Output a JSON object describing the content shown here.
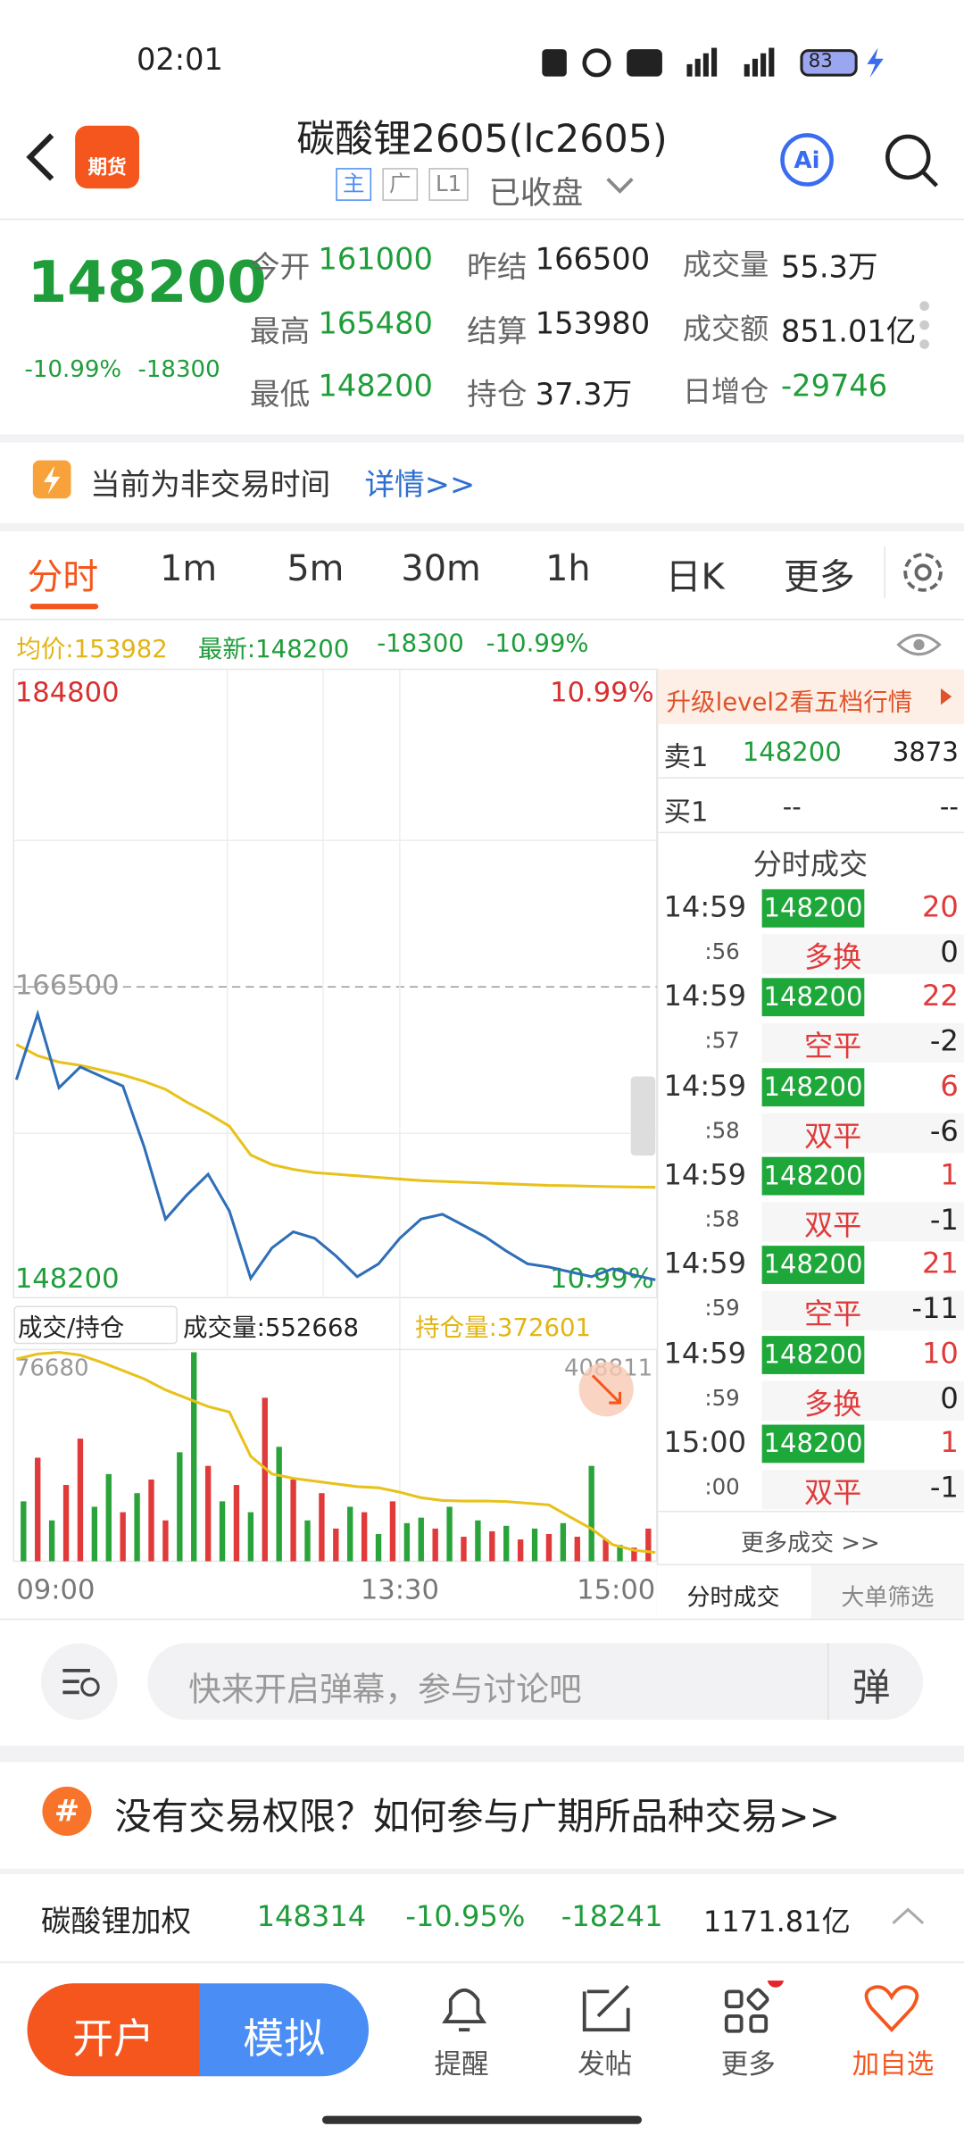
{
  "status_bar": {
    "time": "02:01",
    "battery": "83"
  },
  "header": {
    "logo": "期货",
    "title": "碳酸锂2605(lc2605)",
    "tags": [
      "主",
      "广",
      "L1"
    ],
    "status": "已收盘"
  },
  "quote": {
    "price": 148200,
    "change_pct": "-10.99%",
    "change": -18300,
    "fields": [
      {
        "label": "今开",
        "value": 161000,
        "color": "#1f9d3a"
      },
      {
        "label": "昨结",
        "value": 166500,
        "color": "#222222"
      },
      {
        "label": "成交量",
        "value": "55.3万",
        "color": "#222222"
      },
      {
        "label": "最高",
        "value": 165480,
        "color": "#1f9d3a"
      },
      {
        "label": "结算",
        "value": 153980,
        "color": "#222222"
      },
      {
        "label": "成交额",
        "value": "851.01亿",
        "color": "#222222"
      },
      {
        "label": "最低",
        "value": 148200,
        "color": "#1f9d3a"
      },
      {
        "label": "持仓",
        "value": "37.3万",
        "color": "#222222"
      },
      {
        "label": "日增仓",
        "value": -29746,
        "color": "#1f9d3a"
      }
    ]
  },
  "notice": {
    "text": "当前为非交易时间",
    "link": "详情>>"
  },
  "tabs": [
    "分时",
    "1m",
    "5m",
    "30m",
    "1h",
    "日K",
    "更多"
  ],
  "summary": {
    "avg": "均价:153982",
    "latest": "最新:148200",
    "change": -18300,
    "change_pct": "-10.99%"
  },
  "chart_data": [
    {
      "type": "line",
      "ylim": [
        148200,
        184800
      ],
      "yticks": [
        148200,
        166500,
        184800
      ],
      "y2lim": [
        -10.99,
        10.99
      ],
      "y2ticks": [
        {
          "value": -10.99,
          "label": "10.99%"
        },
        {
          "value": 10.99,
          "label": "10.99%"
        }
      ],
      "xlim": [
        0,
        30
      ],
      "xticks": [
        {
          "value": 0,
          "label": "09:00"
        },
        {
          "value": 18,
          "label": "13:30"
        },
        {
          "value": 30,
          "label": "15:00"
        }
      ],
      "series": [
        {
          "name": "均价",
          "color": "#e8c21a",
          "values": [
            162900,
            162200,
            161800,
            161600,
            161300,
            161000,
            160600,
            160100,
            159300,
            158600,
            157800,
            156000,
            155400,
            155100,
            154900,
            154800,
            154700,
            154600,
            154500,
            154400,
            154350,
            154300,
            154250,
            154200,
            154150,
            154100,
            154080,
            154050,
            154020,
            154000,
            153982
          ]
        },
        {
          "name": "最新",
          "color": "#2e6fb8",
          "values": [
            160700,
            164800,
            160200,
            161500,
            160900,
            160300,
            156500,
            152000,
            153500,
            154800,
            152500,
            148300,
            150200,
            151200,
            150800,
            149700,
            148400,
            149200,
            150800,
            152000,
            152300,
            151600,
            150900,
            150000,
            149200,
            149000,
            148700,
            148400,
            148900,
            148500,
            148200
          ]
        }
      ]
    },
    {
      "type": "bar",
      "selector": "成交/持仓",
      "volume_label": "成交量:552668",
      "oi_label": "持仓量:372601",
      "ylim": [
        0,
        76680
      ],
      "yticks": [
        76680
      ],
      "y2lim": [
        371000,
        408811
      ],
      "y2ticks": [
        408811
      ],
      "xlim": [
        0,
        30
      ],
      "series": [
        {
          "name": "成交量",
          "values": [
            22000,
            38000,
            15000,
            28000,
            45000,
            20000,
            32000,
            18000,
            25000,
            30000,
            15000,
            40000,
            76680,
            35000,
            22000,
            28000,
            18000,
            60000,
            42000,
            30000,
            15000,
            25000,
            12000,
            20000,
            18000,
            10000,
            22000,
            14000,
            16000,
            12000,
            20000,
            9000,
            15000,
            11000,
            13000,
            8000,
            12000,
            10000,
            14000,
            9000,
            35000,
            8000,
            6000,
            5000,
            12000
          ],
          "colors": [
            "#2aa43a",
            "#e03a3a",
            "#2aa43a",
            "#e03a3a",
            "#e03a3a",
            "#2aa43a",
            "#2aa43a",
            "#e03a3a",
            "#2aa43a",
            "#e03a3a",
            "#e03a3a",
            "#2aa43a",
            "#2aa43a",
            "#e03a3a",
            "#2aa43a",
            "#e03a3a",
            "#2aa43a",
            "#e03a3a",
            "#2aa43a",
            "#e03a3a",
            "#2aa43a",
            "#e03a3a",
            "#e03a3a",
            "#2aa43a",
            "#e03a3a",
            "#2aa43a",
            "#e03a3a",
            "#2aa43a",
            "#2aa43a",
            "#e03a3a",
            "#2aa43a",
            "#e03a3a",
            "#2aa43a",
            "#e03a3a",
            "#2aa43a",
            "#e03a3a",
            "#2aa43a",
            "#e03a3a",
            "#2aa43a",
            "#e03a3a",
            "#2aa43a",
            "#e03a3a",
            "#2aa43a",
            "#e03a3a",
            "#e03a3a"
          ]
        },
        {
          "name": "持仓量",
          "color": "#e8c21a",
          "axis": "y2",
          "values": [
            407600,
            408500,
            408800,
            408300,
            407000,
            405500,
            404000,
            402000,
            400500,
            399000,
            398000,
            390000,
            386800,
            386000,
            385500,
            385000,
            384500,
            384300,
            383500,
            382500,
            382000,
            381900,
            381900,
            381800,
            381500,
            381200,
            379000,
            376900,
            374000,
            373000,
            372601
          ]
        }
      ]
    }
  ],
  "side_panel": {
    "level2": "升级level2看五档行情",
    "order_book": [
      {
        "label": "卖1",
        "price": 148200,
        "volume": 3873
      },
      {
        "label": "买1",
        "price": "--",
        "volume": "--"
      }
    ],
    "trades_title": "分时成交",
    "trades": [
      {
        "time": "14:59",
        "sec": ":56",
        "price": 148200,
        "volume": 20,
        "type": "多换",
        "oi": 0
      },
      {
        "time": "14:59",
        "sec": ":57",
        "price": 148200,
        "volume": 22,
        "type": "空平",
        "oi": -2
      },
      {
        "time": "14:59",
        "sec": ":58",
        "price": 148200,
        "volume": 6,
        "type": "双平",
        "oi": -6
      },
      {
        "time": "14:59",
        "sec": ":58",
        "price": 148200,
        "volume": 1,
        "type": "双平",
        "oi": -1
      },
      {
        "time": "14:59",
        "sec": ":59",
        "price": 148200,
        "volume": 21,
        "type": "空平",
        "oi": -11
      },
      {
        "time": "14:59",
        "sec": ":59",
        "price": 148200,
        "volume": 10,
        "type": "多换",
        "oi": 0
      },
      {
        "time": "15:00",
        "sec": ":00",
        "price": 148200,
        "volume": 1,
        "type": "双平",
        "oi": -1
      }
    ],
    "more": "更多成交 >>",
    "tabs": [
      "分时成交",
      "大单筛选"
    ]
  },
  "comment": {
    "placeholder": "快来开启弹幕，参与讨论吧",
    "button": "弹"
  },
  "banner": "没有交易权限？如何参与广期所品种交易>>",
  "index_row": {
    "name": "碳酸锂加权",
    "price": 148314,
    "change_pct": "-10.95%",
    "change": -18241,
    "amount": "1171.81亿"
  },
  "nav": {
    "open": "开户",
    "sim": "模拟",
    "items": [
      "提醒",
      "发帖",
      "更多",
      "加自选"
    ]
  }
}
